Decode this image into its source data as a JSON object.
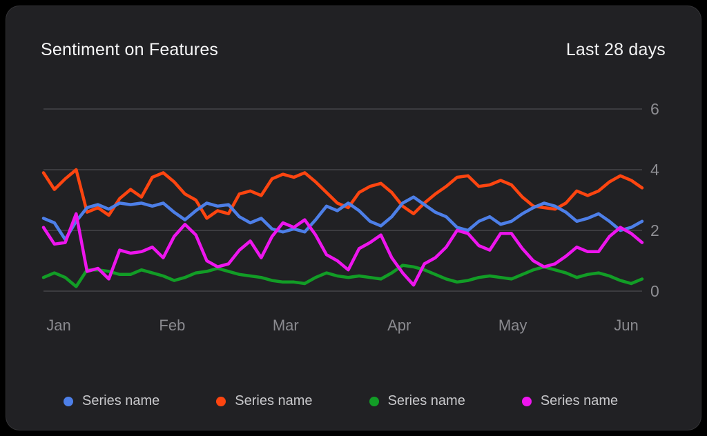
{
  "card": {
    "title": "Sentiment on Features",
    "period_label": "Last 28 days"
  },
  "colors": {
    "background": "#000000",
    "card_background": "#212124",
    "gridline": "#4e4e52",
    "axis_text": "#8a8a8f",
    "legend_text": "#c8c8cb",
    "title_text": "#f7f7f8"
  },
  "chart_data": {
    "type": "line",
    "title": "Sentiment on Features",
    "subtitle": "Last 28 days",
    "x_tick_labels": [
      "Jan",
      "Feb",
      "Mar",
      "Apr",
      "May",
      "Jun"
    ],
    "y_ticks": [
      0,
      2,
      4,
      6
    ],
    "ylim": [
      0,
      6
    ],
    "y_axis_position": "right",
    "grid": "horizontal",
    "legend_position": "bottom",
    "series": [
      {
        "name": "Series name",
        "color": "#4d7fe8",
        "values": [
          2.4,
          2.25,
          1.7,
          2.3,
          2.75,
          2.85,
          2.7,
          2.9,
          2.85,
          2.9,
          2.8,
          2.9,
          2.6,
          2.35,
          2.65,
          2.9,
          2.8,
          2.85,
          2.45,
          2.25,
          2.4,
          2.05,
          1.95,
          2.05,
          1.95,
          2.35,
          2.8,
          2.65,
          2.9,
          2.65,
          2.3,
          2.15,
          2.45,
          2.9,
          3.1,
          2.85,
          2.6,
          2.45,
          2.1,
          2.0,
          2.3,
          2.45,
          2.2,
          2.3,
          2.55,
          2.75,
          2.9,
          2.8,
          2.6,
          2.3,
          2.4,
          2.55,
          2.3,
          2.0,
          2.1,
          2.3
        ]
      },
      {
        "name": "Series name",
        "color": "#fd4510",
        "values": [
          3.9,
          3.35,
          3.7,
          4.0,
          2.6,
          2.75,
          2.5,
          3.05,
          3.35,
          3.1,
          3.75,
          3.9,
          3.6,
          3.2,
          3.0,
          2.4,
          2.65,
          2.55,
          3.2,
          3.3,
          3.15,
          3.7,
          3.85,
          3.75,
          3.9,
          3.6,
          3.25,
          2.9,
          2.75,
          3.25,
          3.45,
          3.55,
          3.25,
          2.8,
          2.55,
          2.9,
          3.2,
          3.45,
          3.75,
          3.8,
          3.45,
          3.5,
          3.65,
          3.5,
          3.1,
          2.8,
          2.75,
          2.7,
          2.9,
          3.3,
          3.15,
          3.3,
          3.6,
          3.8,
          3.65,
          3.4
        ]
      },
      {
        "name": "Series name",
        "color": "#129d26",
        "values": [
          0.45,
          0.6,
          0.45,
          0.15,
          0.7,
          0.7,
          0.65,
          0.55,
          0.55,
          0.7,
          0.6,
          0.5,
          0.35,
          0.45,
          0.6,
          0.65,
          0.75,
          0.65,
          0.55,
          0.5,
          0.45,
          0.35,
          0.3,
          0.3,
          0.25,
          0.45,
          0.6,
          0.5,
          0.45,
          0.5,
          0.45,
          0.4,
          0.6,
          0.85,
          0.8,
          0.7,
          0.55,
          0.4,
          0.3,
          0.35,
          0.45,
          0.5,
          0.45,
          0.4,
          0.55,
          0.7,
          0.8,
          0.7,
          0.6,
          0.45,
          0.55,
          0.6,
          0.5,
          0.35,
          0.25,
          0.4
        ]
      },
      {
        "name": "Series name",
        "color": "#ee15ee",
        "values": [
          2.1,
          1.55,
          1.6,
          2.55,
          0.65,
          0.75,
          0.4,
          1.35,
          1.25,
          1.3,
          1.45,
          1.1,
          1.8,
          2.2,
          1.85,
          1.0,
          0.8,
          0.9,
          1.35,
          1.65,
          1.1,
          1.8,
          2.25,
          2.1,
          2.35,
          1.85,
          1.2,
          1.0,
          0.7,
          1.4,
          1.6,
          1.85,
          1.1,
          0.6,
          0.2,
          0.9,
          1.1,
          1.45,
          2.0,
          1.9,
          1.5,
          1.35,
          1.9,
          1.9,
          1.4,
          1.0,
          0.8,
          0.9,
          1.15,
          1.45,
          1.3,
          1.3,
          1.8,
          2.1,
          1.9,
          1.6
        ]
      }
    ]
  }
}
